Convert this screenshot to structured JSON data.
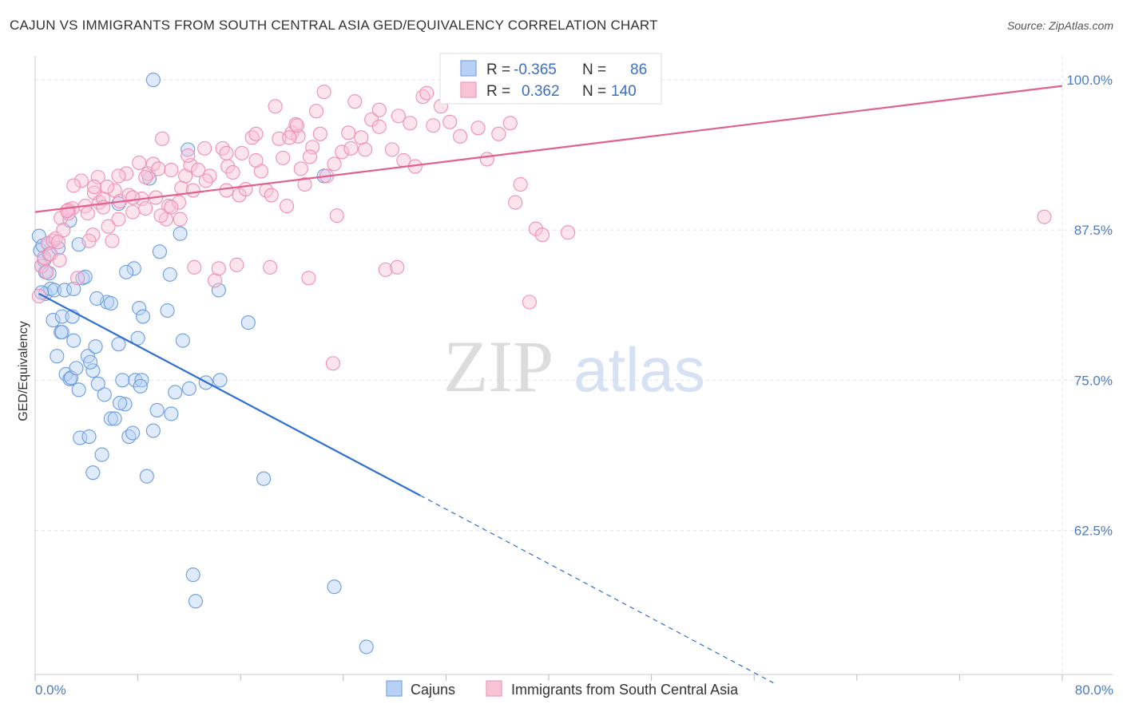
{
  "title": "CAJUN VS IMMIGRANTS FROM SOUTH CENTRAL ASIA GED/EQUIVALENCY CORRELATION CHART",
  "source": "Source: ZipAtlas.com",
  "watermark": {
    "zip": "ZIP",
    "atlas": "atlas"
  },
  "chart_data": {
    "type": "scatter",
    "title": "CAJUN VS IMMIGRANTS FROM SOUTH CENTRAL ASIA GED/EQUIVALENCY CORRELATION CHART",
    "xlabel": "",
    "ylabel": "GED/Equivalency",
    "xlim": [
      0,
      80
    ],
    "ylim": [
      50.5,
      102
    ],
    "x_tick_labels": [
      {
        "value": 0,
        "label": "0.0%"
      },
      {
        "value": 80,
        "label": "80.0%"
      }
    ],
    "y_tick_labels": [
      {
        "value": 100,
        "label": "100.0%"
      },
      {
        "value": 87.5,
        "label": "87.5%"
      },
      {
        "value": 75,
        "label": "75.0%"
      },
      {
        "value": 62.5,
        "label": "62.5%"
      }
    ],
    "grid": true,
    "legend_position": "top-center",
    "series": [
      {
        "name": "Cajuns",
        "color": "#6b9de0",
        "line_color": "#2f6fd0",
        "r_label": "R =",
        "r_value": "-0.365",
        "n_label": "N =",
        "n_value": "86",
        "trend": {
          "x0": 0.3,
          "y0": 82.2,
          "x1": 30,
          "y1": 65.4,
          "dash_to_x": 57.5,
          "dash_to_y": 49.8
        },
        "points": [
          [
            0.3,
            87
          ],
          [
            0.4,
            85.8
          ],
          [
            0.5,
            84.5
          ],
          [
            0.6,
            86.2
          ],
          [
            0.7,
            85
          ],
          [
            0.8,
            84
          ],
          [
            1.0,
            86.4
          ],
          [
            1.1,
            85.5
          ],
          [
            0.8,
            82.2
          ],
          [
            1.2,
            82.6
          ],
          [
            1.5,
            82.5
          ],
          [
            2.3,
            82.5
          ],
          [
            1.4,
            80
          ],
          [
            1.7,
            77
          ],
          [
            2.0,
            79
          ],
          [
            2.1,
            80.3
          ],
          [
            2.4,
            75.5
          ],
          [
            2.7,
            75.1
          ],
          [
            2.9,
            80.3
          ],
          [
            3.0,
            78.3
          ],
          [
            2.8,
            75.2
          ],
          [
            3.2,
            76
          ],
          [
            3.4,
            74.2
          ],
          [
            3.7,
            83.5
          ],
          [
            3.5,
            70.2
          ],
          [
            4.2,
            70.3
          ],
          [
            4.1,
            77
          ],
          [
            4.5,
            75.8
          ],
          [
            4.7,
            77.8
          ],
          [
            4.9,
            74.7
          ],
          [
            5.4,
            73.8
          ],
          [
            5.6,
            81.5
          ],
          [
            4.8,
            81.8
          ],
          [
            4.5,
            67.3
          ],
          [
            5.2,
            68.8
          ],
          [
            5.9,
            71.8
          ],
          [
            6.2,
            71.8
          ],
          [
            6.5,
            78
          ],
          [
            6.8,
            75
          ],
          [
            7.0,
            73
          ],
          [
            7.3,
            70.3
          ],
          [
            7.6,
            70.6
          ],
          [
            7.8,
            75
          ],
          [
            8.3,
            75
          ],
          [
            8.2,
            74.5
          ],
          [
            8.1,
            81
          ],
          [
            8.4,
            80.3
          ],
          [
            8.7,
            67
          ],
          [
            9.2,
            70.8
          ],
          [
            9.5,
            72.5
          ],
          [
            10.3,
            80.8
          ],
          [
            10.5,
            83.8
          ],
          [
            10.6,
            72.2
          ],
          [
            10.9,
            74
          ],
          [
            11.5,
            78.3
          ],
          [
            12.0,
            74.3
          ],
          [
            13.3,
            74.8
          ],
          [
            14.3,
            82.5
          ],
          [
            14.4,
            75
          ],
          [
            16.6,
            79.8
          ],
          [
            17.8,
            66.8
          ],
          [
            22.5,
            92
          ],
          [
            23.3,
            57.8
          ],
          [
            25.8,
            52.8
          ],
          [
            11.3,
            87.2
          ],
          [
            9.7,
            85.7
          ],
          [
            7.7,
            84.3
          ],
          [
            6.5,
            89.7
          ],
          [
            2.7,
            88.3
          ],
          [
            3.4,
            86.3
          ],
          [
            8.9,
            91.8
          ],
          [
            9.2,
            100
          ],
          [
            11.9,
            94.2
          ],
          [
            12.3,
            58.8
          ],
          [
            12.5,
            56.6
          ],
          [
            1.1,
            83.9
          ],
          [
            3.9,
            83.6
          ],
          [
            5.9,
            81.4
          ],
          [
            4.3,
            76.5
          ],
          [
            3.0,
            82.6
          ],
          [
            7.1,
            84.0
          ],
          [
            0.5,
            82.3
          ],
          [
            1.8,
            86.0
          ],
          [
            6.6,
            73.1
          ],
          [
            8.0,
            78.5
          ],
          [
            2.1,
            79.0
          ]
        ]
      },
      {
        "name": "Immigrants from South Central Asia",
        "color": "#f08fb3",
        "line_color": "#e0608f",
        "r_label": "R =",
        "r_value": "0.362",
        "n_label": "N =",
        "n_value": "140",
        "trend": {
          "x0": 0,
          "y0": 89,
          "x1": 80,
          "y1": 99.5
        },
        "points": [
          [
            0.3,
            82
          ],
          [
            0.5,
            84.5
          ],
          [
            0.7,
            85.2
          ],
          [
            1.0,
            86.4
          ],
          [
            1.2,
            85.5
          ],
          [
            1.4,
            86.6
          ],
          [
            1.6,
            86.8
          ],
          [
            1.8,
            86.5
          ],
          [
            2.0,
            88.5
          ],
          [
            2.2,
            87.5
          ],
          [
            2.6,
            89.2
          ],
          [
            2.9,
            89.3
          ],
          [
            3.3,
            83.5
          ],
          [
            3.6,
            91.6
          ],
          [
            3.9,
            89.5
          ],
          [
            4.1,
            88.9
          ],
          [
            4.5,
            87.1
          ],
          [
            4.6,
            90.6
          ],
          [
            4.9,
            91.9
          ],
          [
            5.0,
            89.8
          ],
          [
            5.3,
            90.1
          ],
          [
            5.7,
            87.8
          ],
          [
            6.0,
            86.6
          ],
          [
            6.2,
            90.8
          ],
          [
            6.6,
            89.9
          ],
          [
            7.1,
            92.2
          ],
          [
            7.3,
            90.4
          ],
          [
            7.6,
            89.0
          ],
          [
            8.1,
            93.1
          ],
          [
            8.3,
            90.1
          ],
          [
            8.6,
            89.3
          ],
          [
            8.8,
            92.2
          ],
          [
            9.2,
            93.0
          ],
          [
            9.6,
            92.6
          ],
          [
            9.9,
            95.1
          ],
          [
            10.2,
            88.4
          ],
          [
            10.4,
            89.5
          ],
          [
            10.6,
            92.5
          ],
          [
            11.2,
            89.8
          ],
          [
            11.4,
            91.0
          ],
          [
            11.7,
            92.0
          ],
          [
            12.1,
            92.9
          ],
          [
            12.4,
            84.4
          ],
          [
            12.7,
            92.5
          ],
          [
            13.2,
            94.3
          ],
          [
            13.6,
            92.0
          ],
          [
            14.0,
            83.3
          ],
          [
            14.3,
            84.3
          ],
          [
            14.6,
            94.3
          ],
          [
            15.0,
            92.8
          ],
          [
            15.4,
            92.3
          ],
          [
            15.9,
            90.4
          ],
          [
            16.4,
            90.9
          ],
          [
            16.9,
            95.2
          ],
          [
            17.2,
            95.5
          ],
          [
            17.6,
            92.4
          ],
          [
            18.0,
            90.8
          ],
          [
            18.3,
            84.4
          ],
          [
            18.7,
            97.8
          ],
          [
            19.0,
            95.1
          ],
          [
            19.3,
            93.5
          ],
          [
            19.6,
            89.5
          ],
          [
            20.0,
            95.6
          ],
          [
            20.3,
            96.3
          ],
          [
            20.7,
            92.6
          ],
          [
            21.0,
            91.3
          ],
          [
            21.3,
            83.5
          ],
          [
            21.6,
            94.4
          ],
          [
            21.9,
            97.4
          ],
          [
            22.2,
            95.5
          ],
          [
            22.7,
            92.0
          ],
          [
            23.3,
            93.0
          ],
          [
            23.5,
            88.7
          ],
          [
            23.9,
            94.0
          ],
          [
            24.4,
            95.6
          ],
          [
            24.9,
            98.2
          ],
          [
            25.4,
            95.2
          ],
          [
            25.7,
            94.2
          ],
          [
            26.2,
            96.7
          ],
          [
            26.8,
            97.5
          ],
          [
            27.3,
            84.2
          ],
          [
            27.8,
            94.2
          ],
          [
            28.2,
            84.4
          ],
          [
            28.7,
            93.3
          ],
          [
            29.2,
            96.4
          ],
          [
            29.6,
            92.8
          ],
          [
            30.2,
            98.6
          ],
          [
            31.0,
            96.2
          ],
          [
            31.6,
            97.8
          ],
          [
            32.3,
            96.5
          ],
          [
            33.1,
            95.3
          ],
          [
            33.7,
            98.9
          ],
          [
            34.5,
            96.0
          ],
          [
            35.2,
            93.4
          ],
          [
            36.1,
            95.5
          ],
          [
            37.0,
            96.4
          ],
          [
            37.4,
            89.8
          ],
          [
            37.8,
            91.3
          ],
          [
            38.5,
            81.5
          ],
          [
            39.0,
            87.6
          ],
          [
            39.5,
            87.1
          ],
          [
            41.5,
            87.3
          ],
          [
            47.9,
            99.8
          ],
          [
            78.6,
            88.6
          ],
          [
            20.5,
            95.3
          ],
          [
            10.6,
            89.4
          ],
          [
            14.9,
            90.8
          ],
          [
            6.5,
            92.0
          ],
          [
            2.6,
            88.9
          ],
          [
            4.2,
            86.6
          ],
          [
            8.6,
            91.9
          ],
          [
            12.3,
            90.8
          ],
          [
            15.7,
            84.6
          ],
          [
            18.4,
            90.4
          ],
          [
            21.4,
            93.6
          ],
          [
            23.2,
            76.4
          ],
          [
            26.8,
            96.1
          ],
          [
            9.8,
            88.7
          ],
          [
            5.6,
            91.1
          ],
          [
            17.2,
            93.3
          ],
          [
            13.3,
            91.6
          ],
          [
            1.9,
            85.0
          ],
          [
            3.0,
            91.2
          ],
          [
            7.6,
            90.2
          ],
          [
            11.3,
            88.4
          ],
          [
            16.1,
            93.9
          ],
          [
            19.8,
            95.2
          ],
          [
            22.5,
            99.0
          ],
          [
            28.3,
            97.0
          ],
          [
            33.0,
            98.6
          ],
          [
            4.6,
            91.1
          ],
          [
            6.5,
            88.4
          ],
          [
            9.4,
            90.2
          ],
          [
            11.9,
            93.7
          ],
          [
            14.9,
            93.9
          ],
          [
            20.4,
            96.2
          ],
          [
            24.6,
            94.3
          ],
          [
            30.5,
            98.9
          ],
          [
            0.9,
            84.0
          ],
          [
            2.5,
            89.1
          ],
          [
            5.3,
            89.4
          ]
        ]
      }
    ]
  }
}
